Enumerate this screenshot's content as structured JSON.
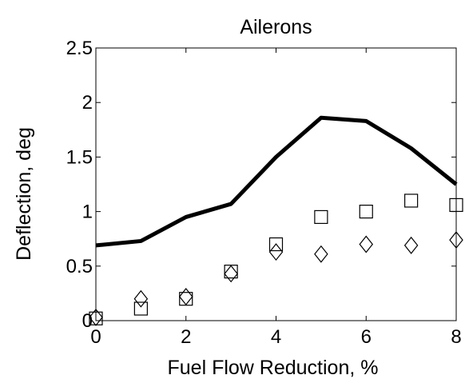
{
  "chart_data": {
    "type": "line",
    "title": "Ailerons",
    "xlabel": "Fuel Flow Reduction, %",
    "ylabel": "Deflection, deg",
    "xlim": [
      0,
      8
    ],
    "ylim": [
      0,
      2.5
    ],
    "x_ticks": [
      0,
      2,
      4,
      6,
      8
    ],
    "y_ticks": [
      0,
      0.5,
      1,
      1.5,
      2,
      2.5
    ],
    "x_tick_labels": [
      "0",
      "2",
      "4",
      "6",
      "8"
    ],
    "y_tick_labels": [
      "0",
      "0.5",
      "1",
      "1.5",
      "2",
      "2.5"
    ],
    "grid": false,
    "legend": "none",
    "series": [
      {
        "marker": "none",
        "style": "solid-line",
        "color": "#000000",
        "x": [
          0,
          1,
          2,
          3,
          4,
          5,
          6,
          7,
          8
        ],
        "y": [
          0.69,
          0.73,
          0.95,
          1.07,
          1.5,
          1.86,
          1.83,
          1.58,
          1.25
        ]
      },
      {
        "marker": "square",
        "style": "markers",
        "color": "#000000",
        "x": [
          0,
          1,
          2,
          3,
          4,
          5,
          6,
          7,
          8
        ],
        "y": [
          0.02,
          0.11,
          0.2,
          0.45,
          0.7,
          0.95,
          1.0,
          1.1,
          1.06
        ]
      },
      {
        "marker": "diamond",
        "style": "markers",
        "color": "#000000",
        "x": [
          0,
          1,
          2,
          3,
          4,
          5,
          6,
          7,
          8
        ],
        "y": [
          0.03,
          0.2,
          0.22,
          0.43,
          0.63,
          0.61,
          0.7,
          0.69,
          0.74
        ]
      }
    ]
  }
}
